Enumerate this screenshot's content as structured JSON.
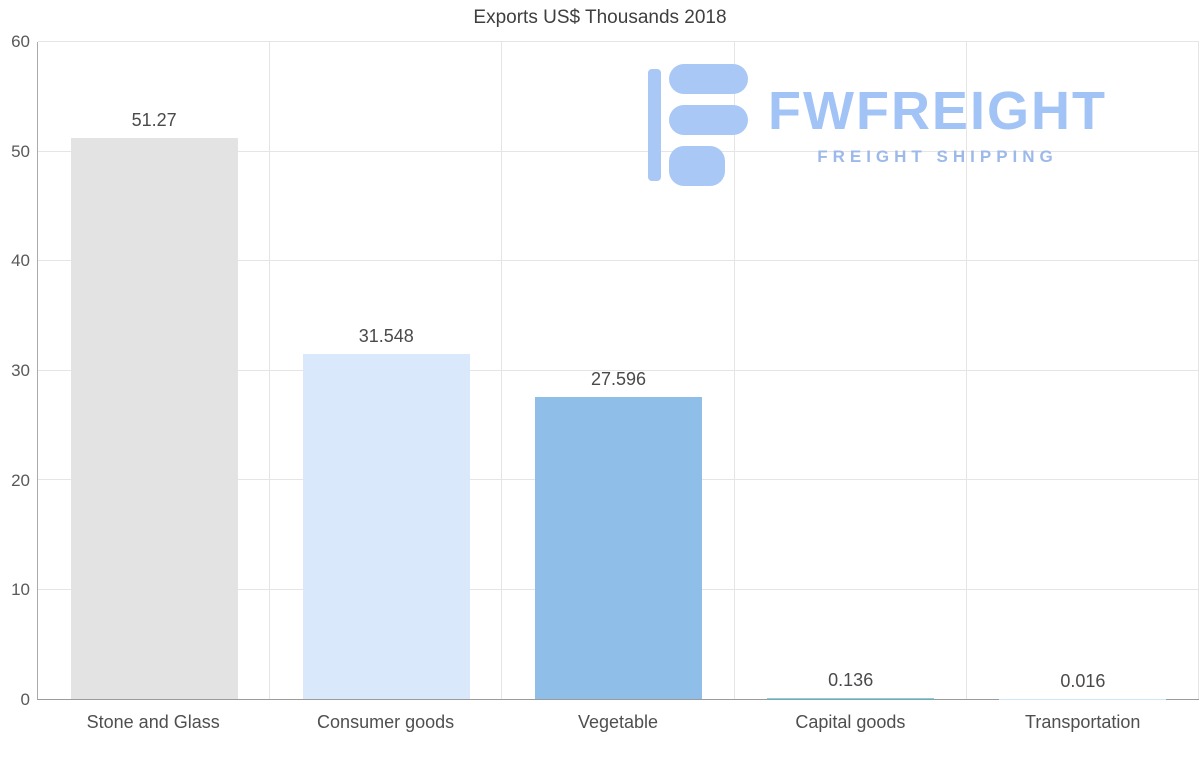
{
  "chart_data": {
    "type": "bar",
    "title": "Exports US$ Thousands 2018",
    "categories": [
      "Stone and Glass",
      "Consumer goods",
      "Vegetable",
      "Capital goods",
      "Transportation"
    ],
    "values": [
      51.27,
      31.548,
      27.596,
      0.136,
      0.016
    ],
    "value_labels": [
      "51.27",
      "31.548",
      "27.596",
      "0.136",
      "0.016"
    ],
    "bar_colors": [
      "#e3e3e3",
      "#d9e9fb",
      "#8fbfe8",
      "#6cd9ec",
      "#cde7f8"
    ],
    "xlabel": "",
    "ylabel": "",
    "ylim": [
      0,
      60
    ],
    "yticks": [
      0,
      10,
      20,
      30,
      40,
      50,
      60
    ],
    "grid": true,
    "legend": "none"
  },
  "watermark": {
    "brand": "FWFREIGHT",
    "tagline": "FREIGHT SHIPPING",
    "icon_color": "#a9c8f5",
    "brand_color": "#a2c3f5",
    "tagline_color": "#9db9ea"
  },
  "colors": {
    "grid": "#e5e5e5",
    "axis_left": "#ababab",
    "axis_bottom": "#9b9b9b",
    "tick_text": "#595959",
    "title_text": "#3f3f3f"
  }
}
